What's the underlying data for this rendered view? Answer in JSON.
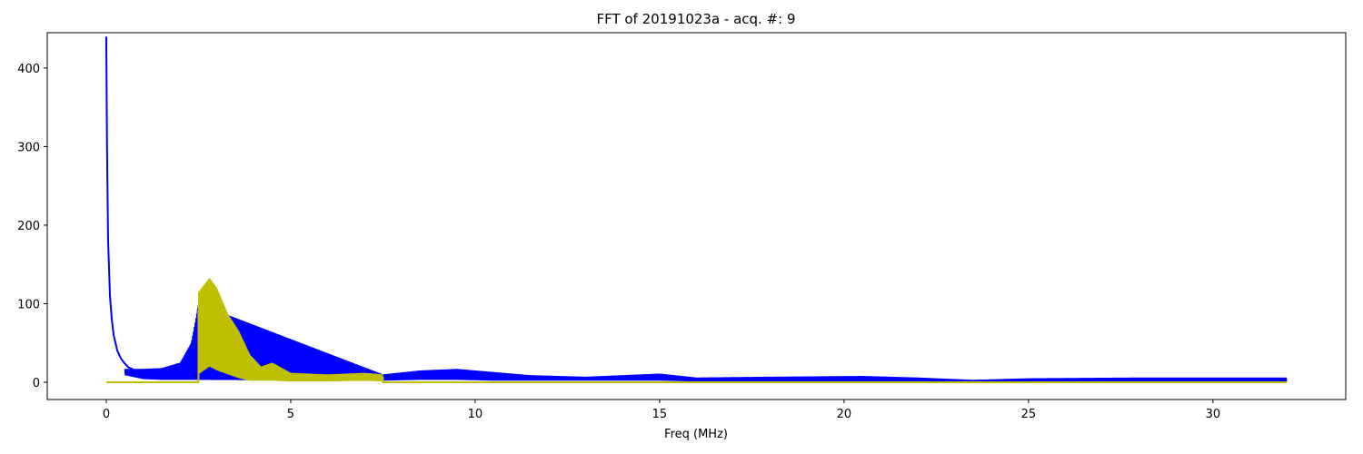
{
  "chart_data": {
    "type": "line",
    "title": "FFT of 20191023a - acq. #: 9",
    "xlabel": "Freq (MHz)",
    "ylabel": "",
    "xlim": [
      -1.6,
      33.6
    ],
    "ylim": [
      -22,
      445
    ],
    "x_ticks": [
      0,
      5,
      10,
      15,
      20,
      25,
      30
    ],
    "x_tick_labels": [
      "0",
      "5",
      "10",
      "15",
      "20",
      "25",
      "30"
    ],
    "y_ticks": [
      0,
      100,
      200,
      300,
      400
    ],
    "y_tick_labels": [
      "0",
      "100",
      "200",
      "300",
      "400"
    ],
    "grid": false,
    "legend": "none",
    "series": [
      {
        "color": "#0000ff",
        "points": [
          [
            0.0,
            440
          ],
          [
            0.02,
            300
          ],
          [
            0.05,
            180
          ],
          [
            0.1,
            110
          ],
          [
            0.15,
            80
          ],
          [
            0.2,
            60
          ],
          [
            0.3,
            40
          ],
          [
            0.4,
            30
          ],
          [
            0.5,
            24
          ],
          [
            0.6,
            19
          ],
          [
            0.8,
            15
          ],
          [
            1.0,
            13
          ],
          [
            1.5,
            12
          ],
          [
            1.8,
            14
          ],
          [
            2.0,
            20
          ],
          [
            2.2,
            35
          ],
          [
            2.4,
            60
          ],
          [
            2.5,
            95
          ],
          [
            7.5,
            8
          ],
          [
            8.0,
            11
          ],
          [
            8.5,
            13
          ],
          [
            9.0,
            14
          ],
          [
            9.5,
            14
          ],
          [
            10.0,
            13
          ],
          [
            10.5,
            11
          ],
          [
            11.0,
            9
          ],
          [
            11.5,
            7
          ],
          [
            12.0,
            6
          ],
          [
            13.0,
            5
          ],
          [
            14.0,
            5
          ],
          [
            14.5,
            7
          ],
          [
            15.0,
            9
          ],
          [
            15.5,
            6
          ],
          [
            16.0,
            4
          ],
          [
            17.0,
            4
          ],
          [
            18.0,
            5
          ],
          [
            19.0,
            5
          ],
          [
            20.0,
            5
          ],
          [
            20.5,
            6
          ],
          [
            21.0,
            5
          ],
          [
            22.0,
            4
          ],
          [
            22.5,
            3
          ],
          [
            23.0,
            2
          ],
          [
            23.5,
            1
          ],
          [
            24.0,
            2
          ],
          [
            25.0,
            3
          ],
          [
            26.0,
            3
          ],
          [
            27.0,
            4
          ],
          [
            28.0,
            4
          ],
          [
            29.0,
            4
          ],
          [
            30.0,
            4
          ],
          [
            31.0,
            4
          ],
          [
            32.0,
            4
          ]
        ],
        "noise_band": [
          [
            0.5,
            9,
            17
          ],
          [
            1.0,
            4,
            17
          ],
          [
            1.5,
            3,
            18
          ],
          [
            2.0,
            3,
            25
          ],
          [
            2.3,
            3,
            50
          ],
          [
            2.5,
            3,
            100
          ],
          [
            7.5,
            2,
            10
          ],
          [
            8.5,
            3,
            15
          ],
          [
            9.5,
            3,
            17
          ],
          [
            10.5,
            2,
            13
          ],
          [
            11.5,
            2,
            9
          ],
          [
            13.0,
            2,
            7
          ],
          [
            15.0,
            2,
            11
          ],
          [
            16.0,
            1,
            6
          ],
          [
            18.0,
            1,
            7
          ],
          [
            20.5,
            1,
            8
          ],
          [
            22.0,
            1,
            6
          ],
          [
            23.5,
            0,
            3
          ],
          [
            25.0,
            1,
            5
          ],
          [
            28.0,
            1,
            6
          ],
          [
            32.0,
            1,
            6
          ]
        ]
      },
      {
        "color": "#bfbf00",
        "points": [
          [
            0.0,
            0
          ],
          [
            2.5,
            0
          ],
          [
            2.5,
            90
          ],
          [
            2.6,
            110
          ],
          [
            2.8,
            125
          ],
          [
            3.0,
            110
          ],
          [
            3.2,
            90
          ],
          [
            3.4,
            75
          ],
          [
            3.6,
            55
          ],
          [
            3.8,
            30
          ],
          [
            4.0,
            15
          ],
          [
            4.2,
            10
          ],
          [
            4.4,
            18
          ],
          [
            4.6,
            12
          ],
          [
            5.0,
            8
          ],
          [
            5.5,
            6
          ],
          [
            6.0,
            6
          ],
          [
            6.5,
            6
          ],
          [
            7.0,
            8
          ],
          [
            7.3,
            10
          ],
          [
            7.5,
            6
          ],
          [
            7.5,
            0
          ],
          [
            32.0,
            0
          ]
        ],
        "noise_band": [
          [
            2.5,
            10,
            115
          ],
          [
            2.8,
            20,
            133
          ],
          [
            3.0,
            15,
            120
          ],
          [
            3.3,
            10,
            87
          ],
          [
            3.6,
            5,
            65
          ],
          [
            3.9,
            2,
            35
          ],
          [
            4.2,
            2,
            20
          ],
          [
            4.5,
            2,
            25
          ],
          [
            5.0,
            1,
            12
          ],
          [
            6.0,
            1,
            10
          ],
          [
            7.0,
            2,
            12
          ],
          [
            7.5,
            1,
            10
          ]
        ]
      }
    ]
  }
}
